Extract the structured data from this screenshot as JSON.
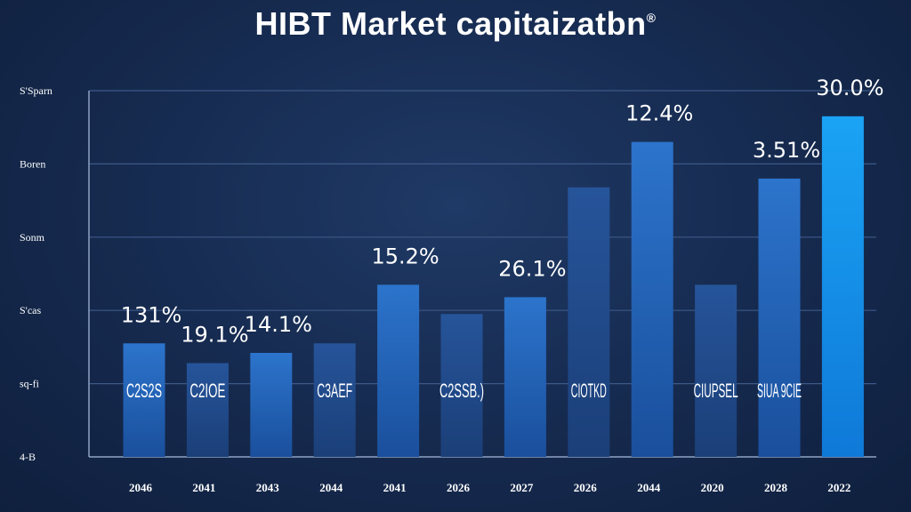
{
  "chart_data": {
    "type": "bar",
    "title": "HIBT Market capitaizatbn",
    "title_mark": "®",
    "colors": {
      "bar_top": "#2c74cc",
      "bar_bottom": "#1a4f9c",
      "bar_dark_top": "#26549a",
      "bar_dark_bottom": "#1b3f78",
      "bar_highlight_top": "#1aa3f5",
      "bar_highlight_bottom": "#0f79d8",
      "gridline": "#3d5987",
      "axis": "#8fa3c4",
      "text": "#ffffff"
    },
    "y_tick_labels": [
      "4-B",
      "sq-fi",
      "S'cas",
      "Sonm",
      "Boren",
      "S'Sparn"
    ],
    "y_tick_values": [
      0,
      1,
      2,
      3,
      4,
      5
    ],
    "ylim": [
      0,
      5
    ],
    "categories": [
      "2046",
      "2041",
      "2043",
      "2044",
      "2041",
      "2026",
      "2027",
      "2026",
      "2044",
      "2020",
      "2028",
      "2022"
    ],
    "values": [
      1.55,
      1.28,
      1.42,
      1.55,
      2.35,
      1.95,
      2.18,
      3.68,
      4.3,
      2.35,
      3.8,
      4.65
    ],
    "bar_shades": [
      "normal",
      "dark",
      "normal",
      "dark",
      "normal",
      "dark",
      "normal",
      "dark",
      "normal",
      "dark",
      "normal",
      "highlight"
    ],
    "data_labels": [
      "131%",
      "19.1%",
      "14.1%",
      "",
      "15.2%",
      "",
      "26.1%",
      "",
      "12.4%",
      "",
      "3.51%",
      "30.0%"
    ],
    "bar_texts": [
      "C2S2S",
      "C2IOE",
      "",
      "C3AEF",
      "",
      "C2SSB.)",
      "",
      "CIOTKD",
      "",
      "CIUPSEL",
      "SIUA 9CIE",
      ""
    ]
  }
}
